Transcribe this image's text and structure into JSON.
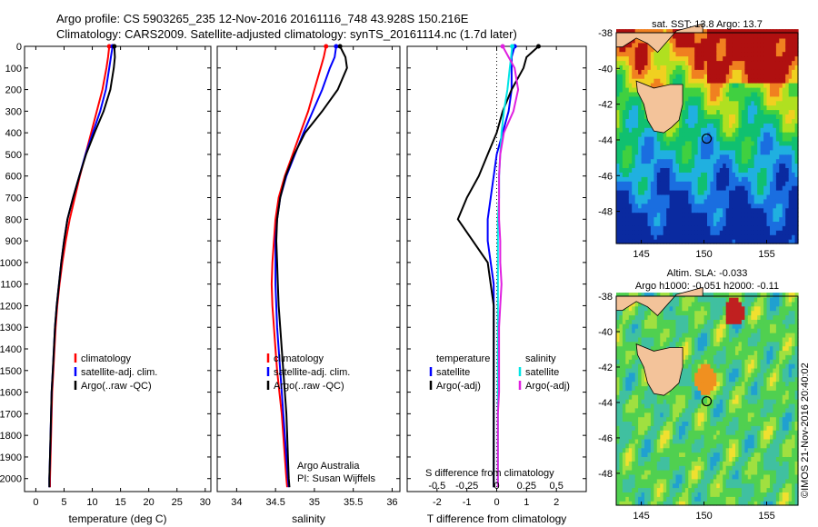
{
  "header": {
    "line1": "Argo profile: CS 5903265_235 12-Nov-2016 20161116_748 43.928S 150.216E",
    "line2": "Climatology: CARS2009. Satellite-adjusted climatology: synTS_20161114.nc (1.7d later)"
  },
  "colors": {
    "climatology": "#ff0000",
    "satellite": "#0000ff",
    "argo": "#000000",
    "salinity_satellite": "#00e5e5",
    "salinity_argo": "#e020e0"
  },
  "credit": "©IMOS 21-Nov-2016 20:40:02",
  "chart_data": [
    {
      "type": "line",
      "id": "temperature",
      "xlabel": "temperature (deg C)",
      "xlim": [
        -2,
        31
      ],
      "xticks": [
        0,
        5,
        10,
        15,
        20,
        25,
        30
      ],
      "ylim": [
        2060,
        0
      ],
      "yticks": [
        0,
        100,
        200,
        300,
        400,
        500,
        600,
        700,
        800,
        900,
        1000,
        1100,
        1200,
        1300,
        1400,
        1500,
        1600,
        1700,
        1800,
        1900,
        2000
      ],
      "depth": [
        0,
        50,
        100,
        200,
        300,
        400,
        500,
        600,
        700,
        800,
        900,
        1000,
        1100,
        1200,
        1300,
        1400,
        1500,
        1600,
        1700,
        1800,
        1900,
        2000,
        2040
      ],
      "series": [
        {
          "name": "climatology",
          "color": "#ff0000",
          "values": [
            13.0,
            12.8,
            12.5,
            11.8,
            10.8,
            9.8,
            8.8,
            7.8,
            6.9,
            6.0,
            5.3,
            4.7,
            4.2,
            3.8,
            3.5,
            3.3,
            3.1,
            2.9,
            2.8,
            2.7,
            2.6,
            2.5,
            2.5
          ]
        },
        {
          "name": "satellite-adj. clim.",
          "color": "#0000ff",
          "values": [
            13.6,
            13.3,
            13.0,
            12.4,
            11.4,
            10.1,
            8.8,
            7.7,
            6.6,
            5.6,
            5.0,
            4.5,
            4.1,
            3.7,
            3.4,
            3.2,
            3.0,
            2.8,
            2.7,
            2.6,
            2.5,
            2.4,
            2.4
          ]
        },
        {
          "name": "Argo(..raw -QC)",
          "color": "#000000",
          "values": [
            13.9,
            14.0,
            13.8,
            13.2,
            12.0,
            10.4,
            8.9,
            7.7,
            6.6,
            5.6,
            5.0,
            4.5,
            4.1,
            3.7,
            3.4,
            3.2,
            3.0,
            2.8,
            2.7,
            2.6,
            2.5,
            2.4,
            2.4
          ]
        }
      ],
      "legend": [
        "climatology",
        "satellite-adj. clim.",
        "Argo(..raw -QC)"
      ]
    },
    {
      "type": "line",
      "id": "salinity",
      "xlabel": "salinity",
      "xlim": [
        33.75,
        36.1
      ],
      "xticks": [
        34,
        34.5,
        35,
        35.5,
        36
      ],
      "xticklabels": [
        "34",
        "34.5",
        "35",
        "35.5",
        "36"
      ],
      "ylim": [
        2060,
        0
      ],
      "depth": [
        0,
        50,
        100,
        200,
        300,
        400,
        500,
        600,
        700,
        800,
        900,
        1000,
        1100,
        1200,
        1300,
        1400,
        1500,
        1600,
        1700,
        1800,
        1900,
        2000,
        2040
      ],
      "series": [
        {
          "name": "climatology",
          "color": "#ff0000",
          "values": [
            35.15,
            35.12,
            35.08,
            35.0,
            34.92,
            34.82,
            34.72,
            34.62,
            34.54,
            34.5,
            34.48,
            34.46,
            34.45,
            34.46,
            34.48,
            34.5,
            34.52,
            34.55,
            34.58,
            34.6,
            34.62,
            34.64,
            34.65
          ]
        },
        {
          "name": "satellite-adj. clim.",
          "color": "#0000ff",
          "values": [
            35.28,
            35.26,
            35.2,
            35.1,
            34.98,
            34.86,
            34.75,
            34.64,
            34.56,
            34.52,
            34.5,
            34.5,
            34.5,
            34.51,
            34.52,
            34.54,
            34.56,
            34.58,
            34.6,
            34.62,
            34.64,
            34.66,
            34.67
          ]
        },
        {
          "name": "Argo(..raw -QC)",
          "color": "#000000",
          "values": [
            35.33,
            35.4,
            35.42,
            35.3,
            35.1,
            34.88,
            34.74,
            34.63,
            34.56,
            34.52,
            34.51,
            34.52,
            34.53,
            34.54,
            34.56,
            34.58,
            34.6,
            34.62,
            34.64,
            34.65,
            34.66,
            34.67,
            34.68
          ]
        }
      ],
      "legend": [
        "climatology",
        "satellite-adj. clim.",
        "Argo(..raw -QC)"
      ],
      "annotation": [
        "Argo Australia",
        "PI: Susan Wijffels"
      ]
    },
    {
      "type": "line",
      "id": "differences",
      "xlabel": "T difference from climatology",
      "top_xlabel": "S difference from climatology",
      "xlim": [
        -3,
        3
      ],
      "xticks": [
        -2,
        -1,
        0,
        1,
        2
      ],
      "top_xticks": [
        -0.5,
        -0.25,
        0,
        0.25,
        0.5
      ],
      "top_xticklabels": [
        "-0.5",
        "-0.25",
        "0",
        "0.25",
        "0.5"
      ],
      "s_scale_note": "S difference axis: 0.25 per T unit",
      "ylim": [
        2060,
        0
      ],
      "depth": [
        0,
        50,
        100,
        200,
        300,
        400,
        500,
        600,
        700,
        800,
        900,
        1000,
        1100,
        1200,
        1300,
        1400,
        1500,
        1600,
        1700,
        1800,
        1900,
        2000,
        2040
      ],
      "series": [
        {
          "name": "temperature satellite",
          "color": "#0000ff",
          "values": [
            0.6,
            0.5,
            0.5,
            0.5,
            0.4,
            0.2,
            0.0,
            -0.1,
            -0.2,
            -0.3,
            -0.3,
            -0.2,
            -0.1,
            -0.1,
            -0.1,
            -0.1,
            -0.1,
            -0.1,
            -0.1,
            -0.1,
            -0.1,
            -0.1,
            -0.1
          ]
        },
        {
          "name": "temperature Argo(-adj)",
          "color": "#000000",
          "values": [
            1.4,
            1.0,
            0.9,
            0.5,
            0.2,
            0.0,
            -0.3,
            -0.6,
            -1.0,
            -1.3,
            -0.8,
            -0.3,
            -0.2,
            -0.1,
            -0.1,
            -0.1,
            -0.1,
            -0.1,
            -0.1,
            -0.1,
            -0.1,
            -0.1,
            -0.1
          ]
        },
        {
          "name": "salinity satellite",
          "color": "#00e5e5",
          "values": [
            0.13,
            0.12,
            0.11,
            0.09,
            0.06,
            0.04,
            0.03,
            0.02,
            0.02,
            0.01,
            0.01,
            0.01,
            0.01,
            0.01,
            0.01,
            0.01,
            0.01,
            0.01,
            0.01,
            0.01,
            0.01,
            0.01,
            0.01
          ]
        },
        {
          "name": "salinity Argo(-adj)",
          "color": "#e020e0",
          "values": [
            0.05,
            0.1,
            0.15,
            0.18,
            0.14,
            0.06,
            0.03,
            0.02,
            0.02,
            0.02,
            0.03,
            0.03,
            0.04,
            0.03,
            0.02,
            0.02,
            0.02,
            0.02,
            0.01,
            0.01,
            0.01,
            0.01,
            0.01
          ]
        }
      ],
      "legend_temperature": {
        "title": "temperature",
        "items": [
          "satellite",
          "Argo(-adj)"
        ]
      },
      "legend_salinity": {
        "title": "salinity",
        "items": [
          "satellite",
          "Argo(-adj)"
        ]
      }
    },
    {
      "type": "heatmap",
      "id": "sst_map",
      "title": "sat. SST: 13.8 Argo: 13.7",
      "xlim": [
        143,
        157.5
      ],
      "ylim": [
        -49.8,
        -38
      ],
      "xticks": [
        145,
        150,
        155
      ],
      "yticks": [
        -38,
        -40,
        -42,
        -44,
        -46,
        -48
      ],
      "argo_position": [
        150.216,
        -43.928
      ]
    },
    {
      "type": "heatmap",
      "id": "sla_map",
      "title": "Altim. SLA: -0.033",
      "subtitle": "Argo h1000: -0.051 h2000: -0.11",
      "xlim": [
        143,
        157.5
      ],
      "ylim": [
        -49.8,
        -38
      ],
      "xticks": [
        145,
        150,
        155
      ],
      "yticks": [
        -38,
        -40,
        -42,
        -44,
        -46,
        -48
      ],
      "argo_position": [
        150.216,
        -43.928
      ]
    }
  ]
}
